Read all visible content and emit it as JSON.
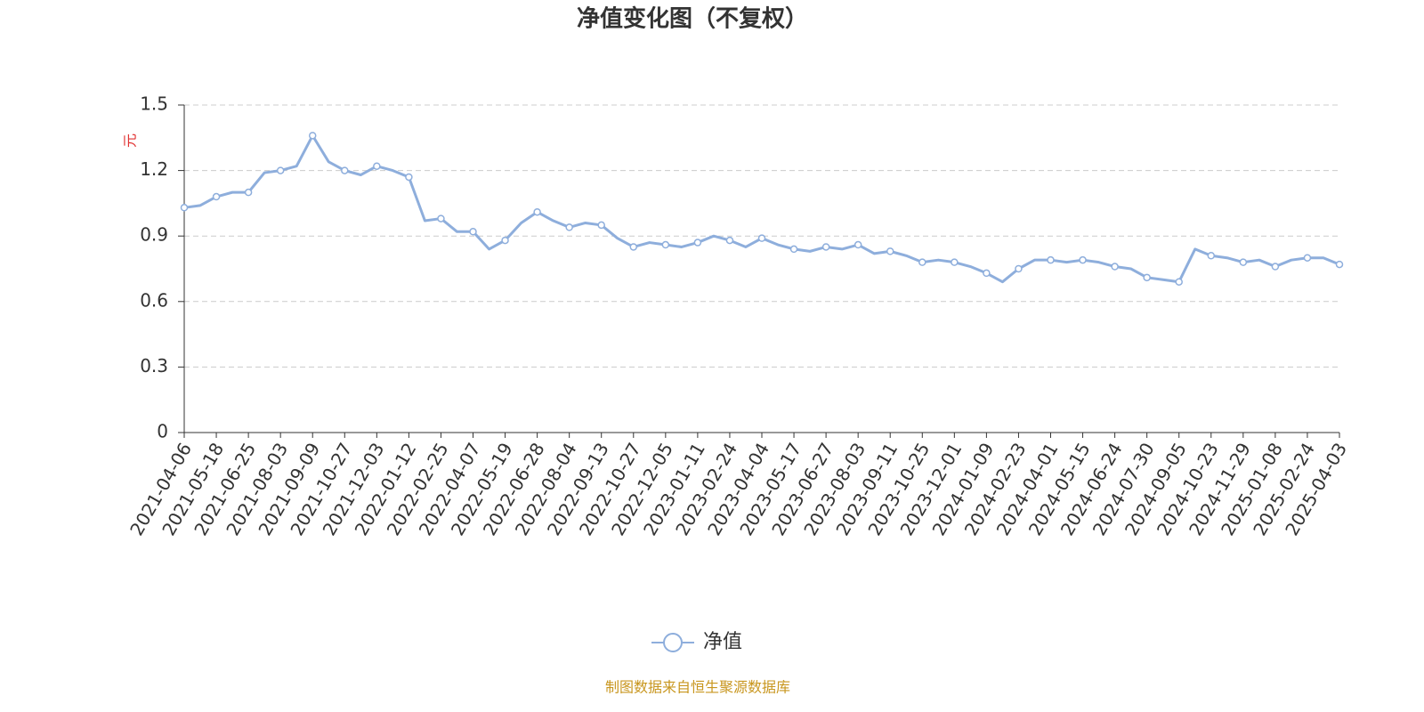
{
  "chart_data": {
    "type": "line",
    "title": "净值变化图（不复权）",
    "y_label": "元",
    "source": "制图数据来自恒生聚源数据库",
    "categories": [
      "2021-04-06",
      null,
      "2021-05-18",
      null,
      "2021-06-25",
      null,
      "2021-08-03",
      null,
      "2021-09-09",
      null,
      "2021-10-27",
      null,
      "2021-12-03",
      null,
      "2022-01-12",
      null,
      "2022-02-25",
      null,
      "2022-04-07",
      null,
      "2022-05-19",
      null,
      "2022-06-28",
      null,
      "2022-08-04",
      null,
      "2022-09-13",
      null,
      "2022-10-27",
      null,
      "2022-12-05",
      null,
      "2023-01-11",
      null,
      "2023-02-24",
      null,
      "2023-04-04",
      null,
      "2023-05-17",
      null,
      "2023-06-27",
      null,
      "2023-08-03",
      null,
      "2023-09-11",
      null,
      "2023-10-25",
      null,
      "2023-12-01",
      null,
      "2024-01-09",
      null,
      "2024-02-23",
      null,
      "2024-04-01",
      null,
      "2024-05-15",
      null,
      "2024-06-24",
      null,
      "2024-07-30",
      null,
      "2024-09-05",
      null,
      "2024-10-23",
      null,
      "2024-11-29",
      null,
      "2025-01-08",
      null,
      "2025-02-24",
      null,
      "2025-04-03"
    ],
    "series": [
      {
        "name": "净值",
        "color": "#8eaedc",
        "values": [
          1.03,
          1.04,
          1.08,
          1.1,
          1.1,
          1.19,
          1.2,
          1.22,
          1.36,
          1.24,
          1.2,
          1.18,
          1.22,
          1.2,
          1.17,
          0.97,
          0.98,
          0.92,
          0.92,
          0.84,
          0.88,
          0.96,
          1.01,
          0.97,
          0.94,
          0.96,
          0.95,
          0.89,
          0.85,
          0.87,
          0.86,
          0.85,
          0.87,
          0.9,
          0.88,
          0.85,
          0.89,
          0.86,
          0.84,
          0.83,
          0.85,
          0.84,
          0.86,
          0.82,
          0.83,
          0.81,
          0.78,
          0.79,
          0.78,
          0.76,
          0.73,
          0.69,
          0.75,
          0.79,
          0.79,
          0.78,
          0.79,
          0.78,
          0.76,
          0.75,
          0.71,
          0.7,
          0.69,
          0.84,
          0.81,
          0.8,
          0.78,
          0.79,
          0.76,
          0.79,
          0.8,
          0.8,
          0.77
        ]
      }
    ],
    "ylim": [
      0,
      1.5
    ],
    "yticks": [
      0,
      {
        "value": 0.3,
        "label": "0.3"
      },
      {
        "value": 0.6,
        "label": "0.6"
      },
      {
        "value": 0.9,
        "label": "0.9"
      },
      {
        "value": 1.2,
        "label": "1.2"
      },
      {
        "value": 1.5,
        "label": "1.5"
      }
    ],
    "grid": true
  }
}
